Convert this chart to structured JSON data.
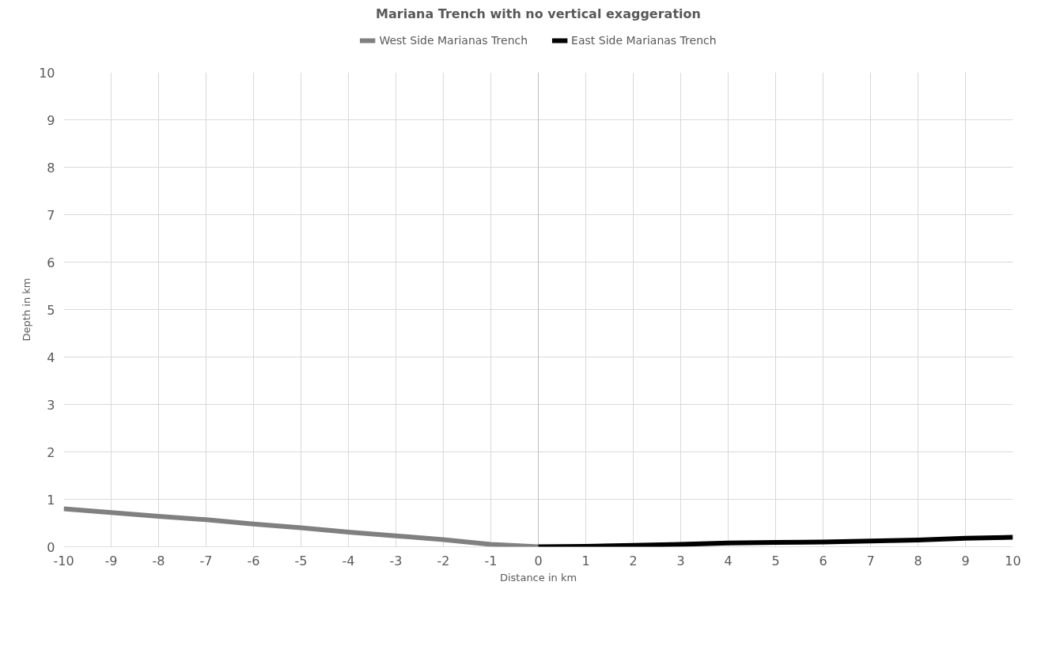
{
  "chart_data": {
    "type": "line",
    "title": "Mariana Trench with no vertical exaggeration",
    "xlabel": "Distance in km",
    "ylabel": "Depth in km",
    "series": [
      {
        "name": "West Side Marianas Trench",
        "color": "#808080",
        "x": [
          -10,
          -9,
          -8,
          -7,
          -6,
          -5,
          -4,
          -3,
          -2,
          -1,
          0
        ],
        "values": [
          0.8,
          0.72,
          0.64,
          0.57,
          0.48,
          0.4,
          0.31,
          0.23,
          0.15,
          0.05,
          0
        ]
      },
      {
        "name": "East Side Marianas Trench",
        "color": "#000000",
        "x": [
          0,
          1,
          2,
          3,
          4,
          5,
          6,
          7,
          8,
          9,
          10
        ],
        "values": [
          0,
          0.01,
          0.03,
          0.05,
          0.08,
          0.09,
          0.1,
          0.12,
          0.14,
          0.18,
          0.2
        ]
      }
    ],
    "xlim": [
      -10,
      10
    ],
    "ylim": [
      0,
      10
    ],
    "xticks": [
      -10,
      -9,
      -8,
      -7,
      -6,
      -5,
      -4,
      -3,
      -2,
      -1,
      0,
      1,
      2,
      3,
      4,
      5,
      6,
      7,
      8,
      9,
      10
    ],
    "yticks": [
      0,
      1,
      2,
      3,
      4,
      5,
      6,
      7,
      8,
      9,
      10
    ],
    "grid": true,
    "legend": "top",
    "marker": "none",
    "line_style": "solid"
  }
}
